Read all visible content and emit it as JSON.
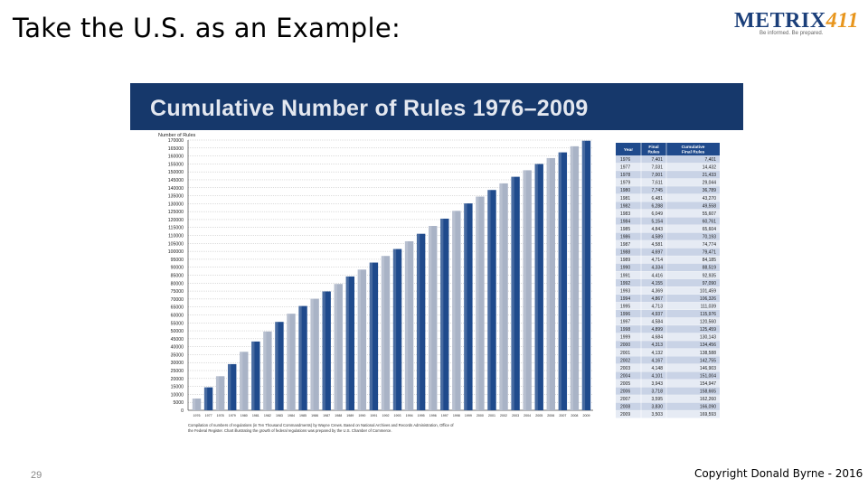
{
  "slide": {
    "title": "Take the U.S. as an Example:",
    "number": "29",
    "copyright": "Copyright Donald Byrne - 2016"
  },
  "logo": {
    "text_main": "METRIX",
    "text_num": "411",
    "tagline": "Be informed. Be prepared."
  },
  "colors": {
    "banner": "#16386b",
    "bar_dark": "#1f4a8c",
    "bar_light": "#a9b3c6",
    "table_header": "#1f4a8c",
    "table_row_odd": "#c9d3e6",
    "table_row_even": "#e6ebf4"
  },
  "chart_data": {
    "type": "bar",
    "title": "Cumulative Number of Rules 1976–2009",
    "ylabel": "Number of Rules",
    "xlabel": "",
    "ylim": [
      0,
      170000
    ],
    "yticks": [
      0,
      5000,
      10000,
      15000,
      20000,
      25000,
      30000,
      35000,
      40000,
      45000,
      50000,
      55000,
      60000,
      65000,
      70000,
      75000,
      80000,
      85000,
      90000,
      95000,
      100000,
      105000,
      110000,
      115000,
      120000,
      125000,
      130000,
      135000,
      140000,
      145000,
      150000,
      155000,
      160000,
      165000,
      170000
    ],
    "grid": true,
    "categories": [
      "1976",
      "1977",
      "1978",
      "1979",
      "1980",
      "1981",
      "1982",
      "1983",
      "1984",
      "1985",
      "1986",
      "1987",
      "1988",
      "1989",
      "1990",
      "1991",
      "1992",
      "1993",
      "1994",
      "1995",
      "1996",
      "1997",
      "1998",
      "1999",
      "2000",
      "2001",
      "2002",
      "2003",
      "2004",
      "2005",
      "2006",
      "2007",
      "2008",
      "2009"
    ],
    "values": [
      7401,
      14432,
      21433,
      29044,
      36789,
      43270,
      49558,
      55607,
      60761,
      65604,
      70193,
      74774,
      79471,
      84185,
      88519,
      92935,
      97090,
      101459,
      106326,
      111039,
      115976,
      120560,
      125459,
      130143,
      134456,
      138588,
      142755,
      146903,
      151004,
      154947,
      158665,
      162260,
      166090,
      169593
    ],
    "caption": "Compilation of numbers of regulations (in Ten Thousand Commandments) by Wayne Crews. Based on National Archives and Records Administration, Office of the Federal Register. Chart illustrating the growth of federal regulations was prepared by the U.S. Chamber of Commerce.",
    "table": {
      "headers": [
        "Year",
        "Final Rules",
        "Cumulative Final Rules"
      ],
      "rows": [
        [
          "1976",
          "7,401",
          "7,401"
        ],
        [
          "1977",
          "7,031",
          "14,432"
        ],
        [
          "1978",
          "7,001",
          "21,433"
        ],
        [
          "1979",
          "7,611",
          "29,044"
        ],
        [
          "1980",
          "7,745",
          "36,789"
        ],
        [
          "1981",
          "6,481",
          "43,270"
        ],
        [
          "1982",
          "6,288",
          "49,558"
        ],
        [
          "1983",
          "6,049",
          "55,607"
        ],
        [
          "1984",
          "5,154",
          "60,761"
        ],
        [
          "1985",
          "4,843",
          "65,604"
        ],
        [
          "1986",
          "4,589",
          "70,193"
        ],
        [
          "1987",
          "4,581",
          "74,774"
        ],
        [
          "1988",
          "4,697",
          "79,471"
        ],
        [
          "1989",
          "4,714",
          "84,185"
        ],
        [
          "1990",
          "4,334",
          "88,519"
        ],
        [
          "1991",
          "4,416",
          "92,935"
        ],
        [
          "1992",
          "4,155",
          "97,090"
        ],
        [
          "1993",
          "4,369",
          "101,459"
        ],
        [
          "1994",
          "4,867",
          "106,326"
        ],
        [
          "1995",
          "4,713",
          "111,039"
        ],
        [
          "1996",
          "4,937",
          "115,976"
        ],
        [
          "1997",
          "4,584",
          "120,560"
        ],
        [
          "1998",
          "4,899",
          "125,459"
        ],
        [
          "1999",
          "4,684",
          "130,143"
        ],
        [
          "2000",
          "4,313",
          "134,456"
        ],
        [
          "2001",
          "4,132",
          "138,588"
        ],
        [
          "2002",
          "4,167",
          "142,755"
        ],
        [
          "2003",
          "4,148",
          "146,903"
        ],
        [
          "2004",
          "4,101",
          "151,004"
        ],
        [
          "2005",
          "3,943",
          "154,947"
        ],
        [
          "2006",
          "3,718",
          "158,665"
        ],
        [
          "2007",
          "3,595",
          "162,260"
        ],
        [
          "2008",
          "3,830",
          "166,090"
        ],
        [
          "2009",
          "3,503",
          "169,593"
        ]
      ]
    }
  }
}
